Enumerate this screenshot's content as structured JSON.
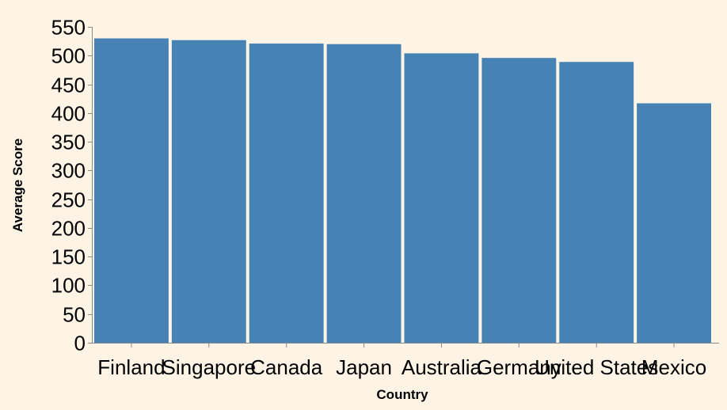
{
  "chart_data": {
    "type": "bar",
    "xlabel": "Country",
    "ylabel": "Average Score",
    "ylim": [
      0,
      550
    ],
    "yticks": [
      0,
      50,
      100,
      150,
      200,
      250,
      300,
      350,
      400,
      450,
      500,
      550
    ],
    "grid": false,
    "categories": [
      "Finland",
      "Singapore",
      "Canada",
      "Japan",
      "Australia",
      "Germany",
      "United States",
      "Mexico"
    ],
    "values": [
      530,
      527,
      521,
      520,
      504,
      496,
      489,
      417
    ],
    "colors": {
      "bar": "#4682b4",
      "axis": "#888888",
      "background": "#fdf4e6"
    }
  }
}
